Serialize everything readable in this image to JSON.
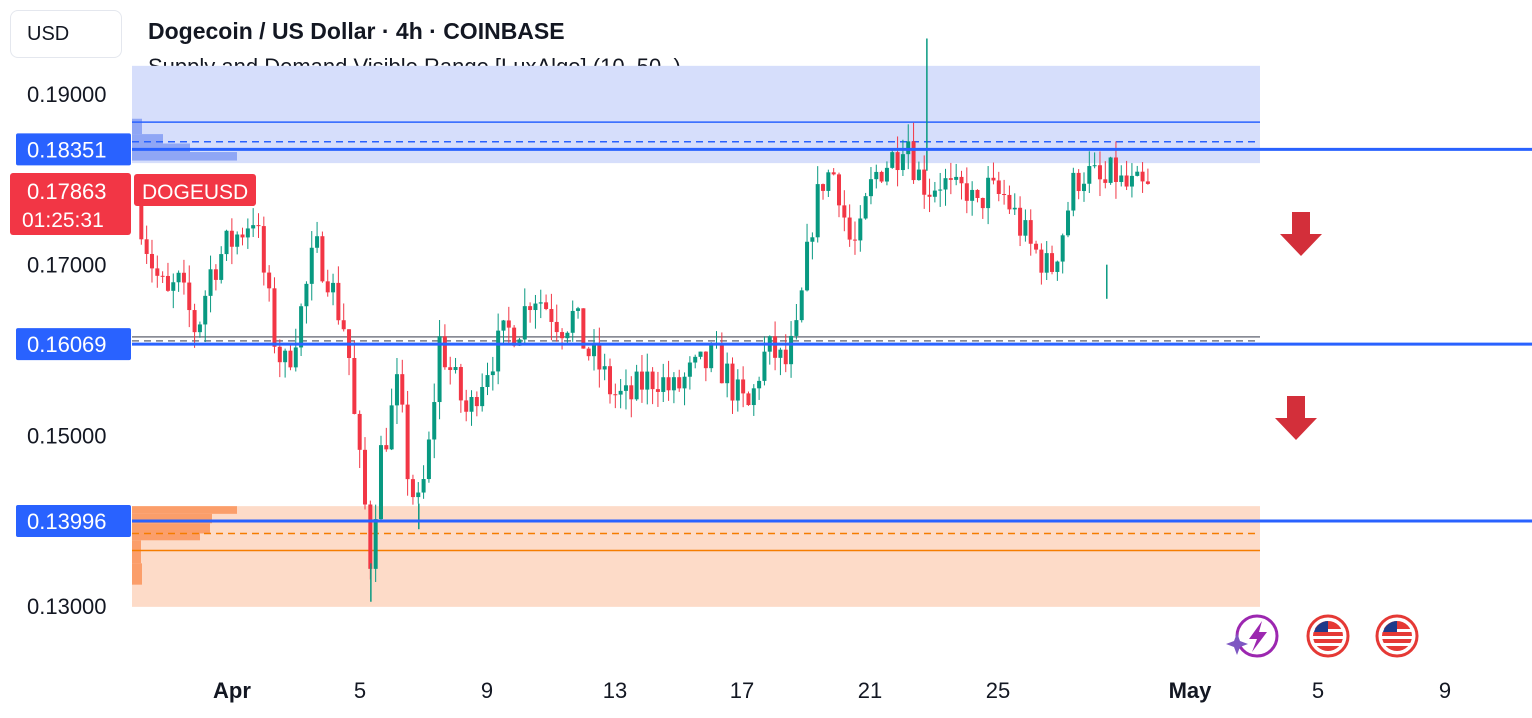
{
  "header": {
    "currency": "USD",
    "title": "Dogecoin / US Dollar · 4h · COINBASE",
    "subtitle": "Supply and Demand Visible Range [LuxAlgo] (10, 50, )"
  },
  "price_tags": {
    "supply_level": "0.18351",
    "current_price": "0.17863",
    "countdown": "01:25:31",
    "symbol": "DOGEUSD",
    "mid_level": "0.16069",
    "demand_level": "0.13996"
  },
  "colors": {
    "up": "#089981",
    "down": "#f23645",
    "supply_zone": "#d6defb",
    "demand_zone": "#fddbc8",
    "level_line": "#2962ff",
    "arrow": "#d32f3a"
  },
  "icons": [
    "flash-event-icon",
    "us-flag-event-icon",
    "us-flag-event-icon"
  ],
  "chart_data": {
    "type": "candlestick",
    "title": "Dogecoin / US Dollar · 4h · COINBASE",
    "indicator": "Supply and Demand Visible Range [LuxAlgo] (10, 50, )",
    "y_ticks": [
      0.19,
      0.17,
      0.15,
      0.13
    ],
    "y_tick_labels": [
      "0.19000",
      "0.17000",
      "0.15000",
      "0.13000"
    ],
    "ylim": [
      0.124,
      0.2035
    ],
    "x_tick_labels": [
      {
        "label": "Apr",
        "day": 1,
        "bold": true
      },
      {
        "label": "5",
        "day": 5
      },
      {
        "label": "9",
        "day": 9
      },
      {
        "label": "13",
        "day": 13
      },
      {
        "label": "17",
        "day": 17
      },
      {
        "label": "21",
        "day": 21
      },
      {
        "label": "25",
        "day": 25
      },
      {
        "label": "May",
        "day": 31,
        "bold": true
      },
      {
        "label": "5",
        "day": 35
      },
      {
        "label": "9",
        "day": 39
      }
    ],
    "zones": {
      "supply": {
        "top": 0.1933,
        "bottom": 0.1819,
        "avg": 0.1844,
        "level": 0.1867
      },
      "demand": {
        "top": 0.1417,
        "bottom": 0.1299,
        "avg": 0.1385,
        "level": 0.1365
      },
      "equilibrium": 0.1613
    },
    "levels": [
      0.18351,
      0.16069,
      0.13996
    ],
    "current_price": 0.17863,
    "anchors": [
      [
        0.0,
        0.178
      ],
      [
        0.3,
        0.173
      ],
      [
        0.6,
        0.169
      ],
      [
        1.0,
        0.166
      ],
      [
        1.3,
        0.168
      ],
      [
        1.9,
        0.162
      ],
      [
        2.3,
        0.169
      ],
      [
        2.8,
        0.172
      ],
      [
        3.3,
        0.174
      ],
      [
        3.7,
        0.176
      ],
      [
        4.0,
        0.169
      ],
      [
        4.4,
        0.16
      ],
      [
        4.7,
        0.158
      ],
      [
        5.2,
        0.165
      ],
      [
        5.6,
        0.172
      ],
      [
        6.0,
        0.169
      ],
      [
        6.3,
        0.165
      ],
      [
        6.6,
        0.162
      ],
      [
        6.9,
        0.149
      ],
      [
        7.1,
        0.144
      ],
      [
        7.35,
        0.135
      ],
      [
        7.6,
        0.147
      ],
      [
        7.9,
        0.151
      ],
      [
        8.2,
        0.156
      ],
      [
        8.5,
        0.146
      ],
      [
        8.8,
        0.141
      ],
      [
        9.1,
        0.146
      ],
      [
        9.5,
        0.161
      ],
      [
        10.0,
        0.156
      ],
      [
        10.4,
        0.152
      ],
      [
        10.7,
        0.156
      ],
      [
        11.1,
        0.159
      ],
      [
        11.6,
        0.162
      ],
      [
        12.0,
        0.163
      ],
      [
        12.4,
        0.167
      ],
      [
        12.9,
        0.165
      ],
      [
        13.3,
        0.163
      ],
      [
        13.7,
        0.164
      ],
      [
        14.1,
        0.16
      ],
      [
        14.5,
        0.158
      ],
      [
        14.9,
        0.155
      ],
      [
        15.4,
        0.154
      ],
      [
        15.8,
        0.156
      ],
      [
        16.3,
        0.157
      ],
      [
        16.8,
        0.155
      ],
      [
        17.3,
        0.157
      ],
      [
        17.7,
        0.158
      ],
      [
        18.1,
        0.159
      ],
      [
        18.5,
        0.157
      ],
      [
        18.9,
        0.154
      ],
      [
        19.2,
        0.153
      ],
      [
        19.6,
        0.159
      ],
      [
        19.9,
        0.16
      ],
      [
        20.3,
        0.158
      ],
      [
        20.7,
        0.162
      ],
      [
        20.9,
        0.168
      ],
      [
        21.2,
        0.176
      ],
      [
        21.5,
        0.18
      ],
      [
        21.8,
        0.181
      ],
      [
        22.0,
        0.179
      ],
      [
        22.3,
        0.173
      ],
      [
        22.6,
        0.172
      ],
      [
        22.9,
        0.178
      ],
      [
        23.2,
        0.181
      ],
      [
        23.5,
        0.182
      ],
      [
        23.8,
        0.183
      ],
      [
        24.1,
        0.186
      ],
      [
        24.4,
        0.181
      ],
      [
        24.8,
        0.179
      ],
      [
        25.2,
        0.18
      ],
      [
        25.6,
        0.178
      ],
      [
        26.0,
        0.179
      ],
      [
        26.3,
        0.176
      ],
      [
        26.6,
        0.179
      ],
      [
        26.9,
        0.178
      ],
      [
        27.2,
        0.178
      ],
      [
        27.6,
        0.175
      ],
      [
        28.0,
        0.172
      ],
      [
        28.3,
        0.171
      ],
      [
        28.6,
        0.169
      ],
      [
        29.0,
        0.174
      ],
      [
        29.3,
        0.179
      ],
      [
        29.6,
        0.181
      ],
      [
        30.0,
        0.18
      ],
      [
        30.3,
        0.179
      ],
      [
        30.6,
        0.181
      ],
      [
        30.9,
        0.179
      ],
      [
        31.2,
        0.179
      ],
      [
        31.6,
        0.1786
      ]
    ],
    "spikes": [
      [
        24.75,
        0.1965,
        0.181
      ],
      [
        7.35,
        0.1305,
        0.135
      ],
      [
        30.38,
        0.166,
        0.17
      ],
      [
        8.85,
        0.139,
        0.142
      ]
    ],
    "events": [
      "flash",
      "us-flag",
      "us-flag"
    ]
  }
}
